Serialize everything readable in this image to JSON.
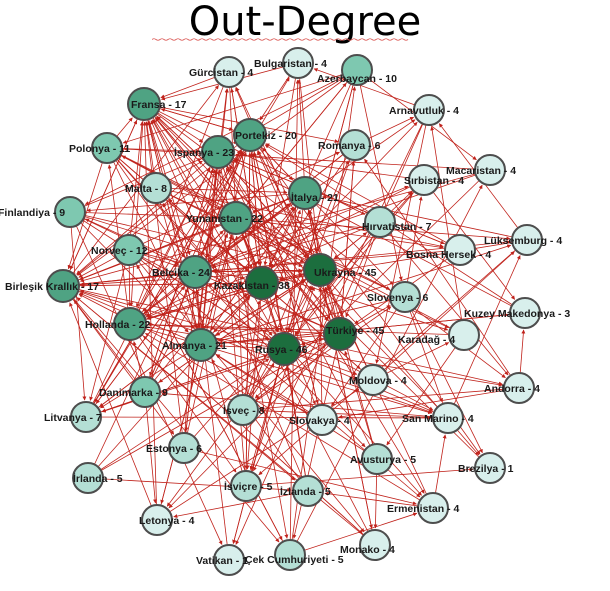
{
  "title": "Out-Degree",
  "colors": {
    "edge": "#c0221b",
    "node_stroke": "#4d4d4d",
    "level1": "#d8efec",
    "level2": "#b4dfd5",
    "level3": "#7ec8b0",
    "level4": "#4fa383",
    "level5": "#1c6e3e"
  },
  "nodes": [
    {
      "id": "gurcistan",
      "label": "Gürcistan - 4",
      "degree": 4
    },
    {
      "id": "bulgaristan",
      "label": "Bulgaristan - 4",
      "degree": 4
    },
    {
      "id": "azerbaycan",
      "label": "Azerbaycan - 10",
      "degree": 10
    },
    {
      "id": "fransa",
      "label": "Fransa - 17",
      "degree": 17
    },
    {
      "id": "arnavutluk",
      "label": "Arnavutluk - 4",
      "degree": 4
    },
    {
      "id": "portekiz",
      "label": "Portekiz - 20",
      "degree": 20
    },
    {
      "id": "romanya",
      "label": "Romanya - 6",
      "degree": 6
    },
    {
      "id": "polonya",
      "label": "Polonya - 11",
      "degree": 11
    },
    {
      "id": "ispanya",
      "label": "İspanya - 23",
      "degree": 23
    },
    {
      "id": "macaristan",
      "label": "Macaristan - 4",
      "degree": 4
    },
    {
      "id": "sirbistan",
      "label": "Sırbistan - 4",
      "degree": 4
    },
    {
      "id": "malta",
      "label": "Malta - 8",
      "degree": 8
    },
    {
      "id": "italya",
      "label": "İtalya - 21",
      "degree": 21
    },
    {
      "id": "finlandiya",
      "label": "Finlandiya - 9",
      "degree": 9
    },
    {
      "id": "yunanistan",
      "label": "Yunanistan - 22",
      "degree": 22
    },
    {
      "id": "hirvatistan",
      "label": "Hırvatistan - 7",
      "degree": 7
    },
    {
      "id": "luksemburg",
      "label": "Lüksemburg - 4",
      "degree": 4
    },
    {
      "id": "norvec",
      "label": "Norveç - 12",
      "degree": 12
    },
    {
      "id": "bosna",
      "label": "Bosna Hersek - 4",
      "degree": 4
    },
    {
      "id": "ukrayna",
      "label": "Ukrayna - 45",
      "degree": 45
    },
    {
      "id": "belcika",
      "label": "Belçika - 24",
      "degree": 24
    },
    {
      "id": "kazakistan",
      "label": "Kazakistan - 38",
      "degree": 38
    },
    {
      "id": "birlesik",
      "label": "Birleşik Krallık - 17",
      "degree": 17
    },
    {
      "id": "slovenya",
      "label": "Slovenya - 6",
      "degree": 6
    },
    {
      "id": "kuzey",
      "label": "Kuzey Makedonya - 3",
      "degree": 3
    },
    {
      "id": "hollanda",
      "label": "Hollanda - 22",
      "degree": 22
    },
    {
      "id": "turkiye",
      "label": "Türkiye - 45",
      "degree": 45
    },
    {
      "id": "karadag",
      "label": "Karadağ - 4",
      "degree": 4
    },
    {
      "id": "almanya",
      "label": "Almanya - 21",
      "degree": 21
    },
    {
      "id": "rusya",
      "label": "Rusya - 46",
      "degree": 46
    },
    {
      "id": "moldova",
      "label": "Moldova - 4",
      "degree": 4
    },
    {
      "id": "andorra",
      "label": "Andorra - 4",
      "degree": 4
    },
    {
      "id": "danimarka",
      "label": "Danimarka - 9",
      "degree": 9
    },
    {
      "id": "litvanya",
      "label": "Litvanya - 7",
      "degree": 7
    },
    {
      "id": "isvec",
      "label": "İsveç - 8",
      "degree": 8
    },
    {
      "id": "slovakya",
      "label": "Slovakya - 4",
      "degree": 4
    },
    {
      "id": "sanmarino",
      "label": "San Marino - 4",
      "degree": 4
    },
    {
      "id": "estonya",
      "label": "Estonya - 6",
      "degree": 6
    },
    {
      "id": "avusturya",
      "label": "Avusturya - 5",
      "degree": 5
    },
    {
      "id": "brezilya",
      "label": "Brezilya - 1",
      "degree": 1
    },
    {
      "id": "irlanda",
      "label": "İrlanda - 5",
      "degree": 5
    },
    {
      "id": "isvicre",
      "label": "İsviçre - 5",
      "degree": 5
    },
    {
      "id": "izlanda",
      "label": "İzlanda - 5",
      "degree": 5
    },
    {
      "id": "ermenistan",
      "label": "Ermenistan - 4",
      "degree": 4
    },
    {
      "id": "letonya",
      "label": "Letonya - 4",
      "degree": 4
    },
    {
      "id": "monako",
      "label": "Monako - 4",
      "degree": 4
    },
    {
      "id": "vatikan",
      "label": "Vatikan - 1",
      "degree": 1
    },
    {
      "id": "cek",
      "label": "Çek Cumhuriyeti - 5",
      "degree": 5
    }
  ]
}
